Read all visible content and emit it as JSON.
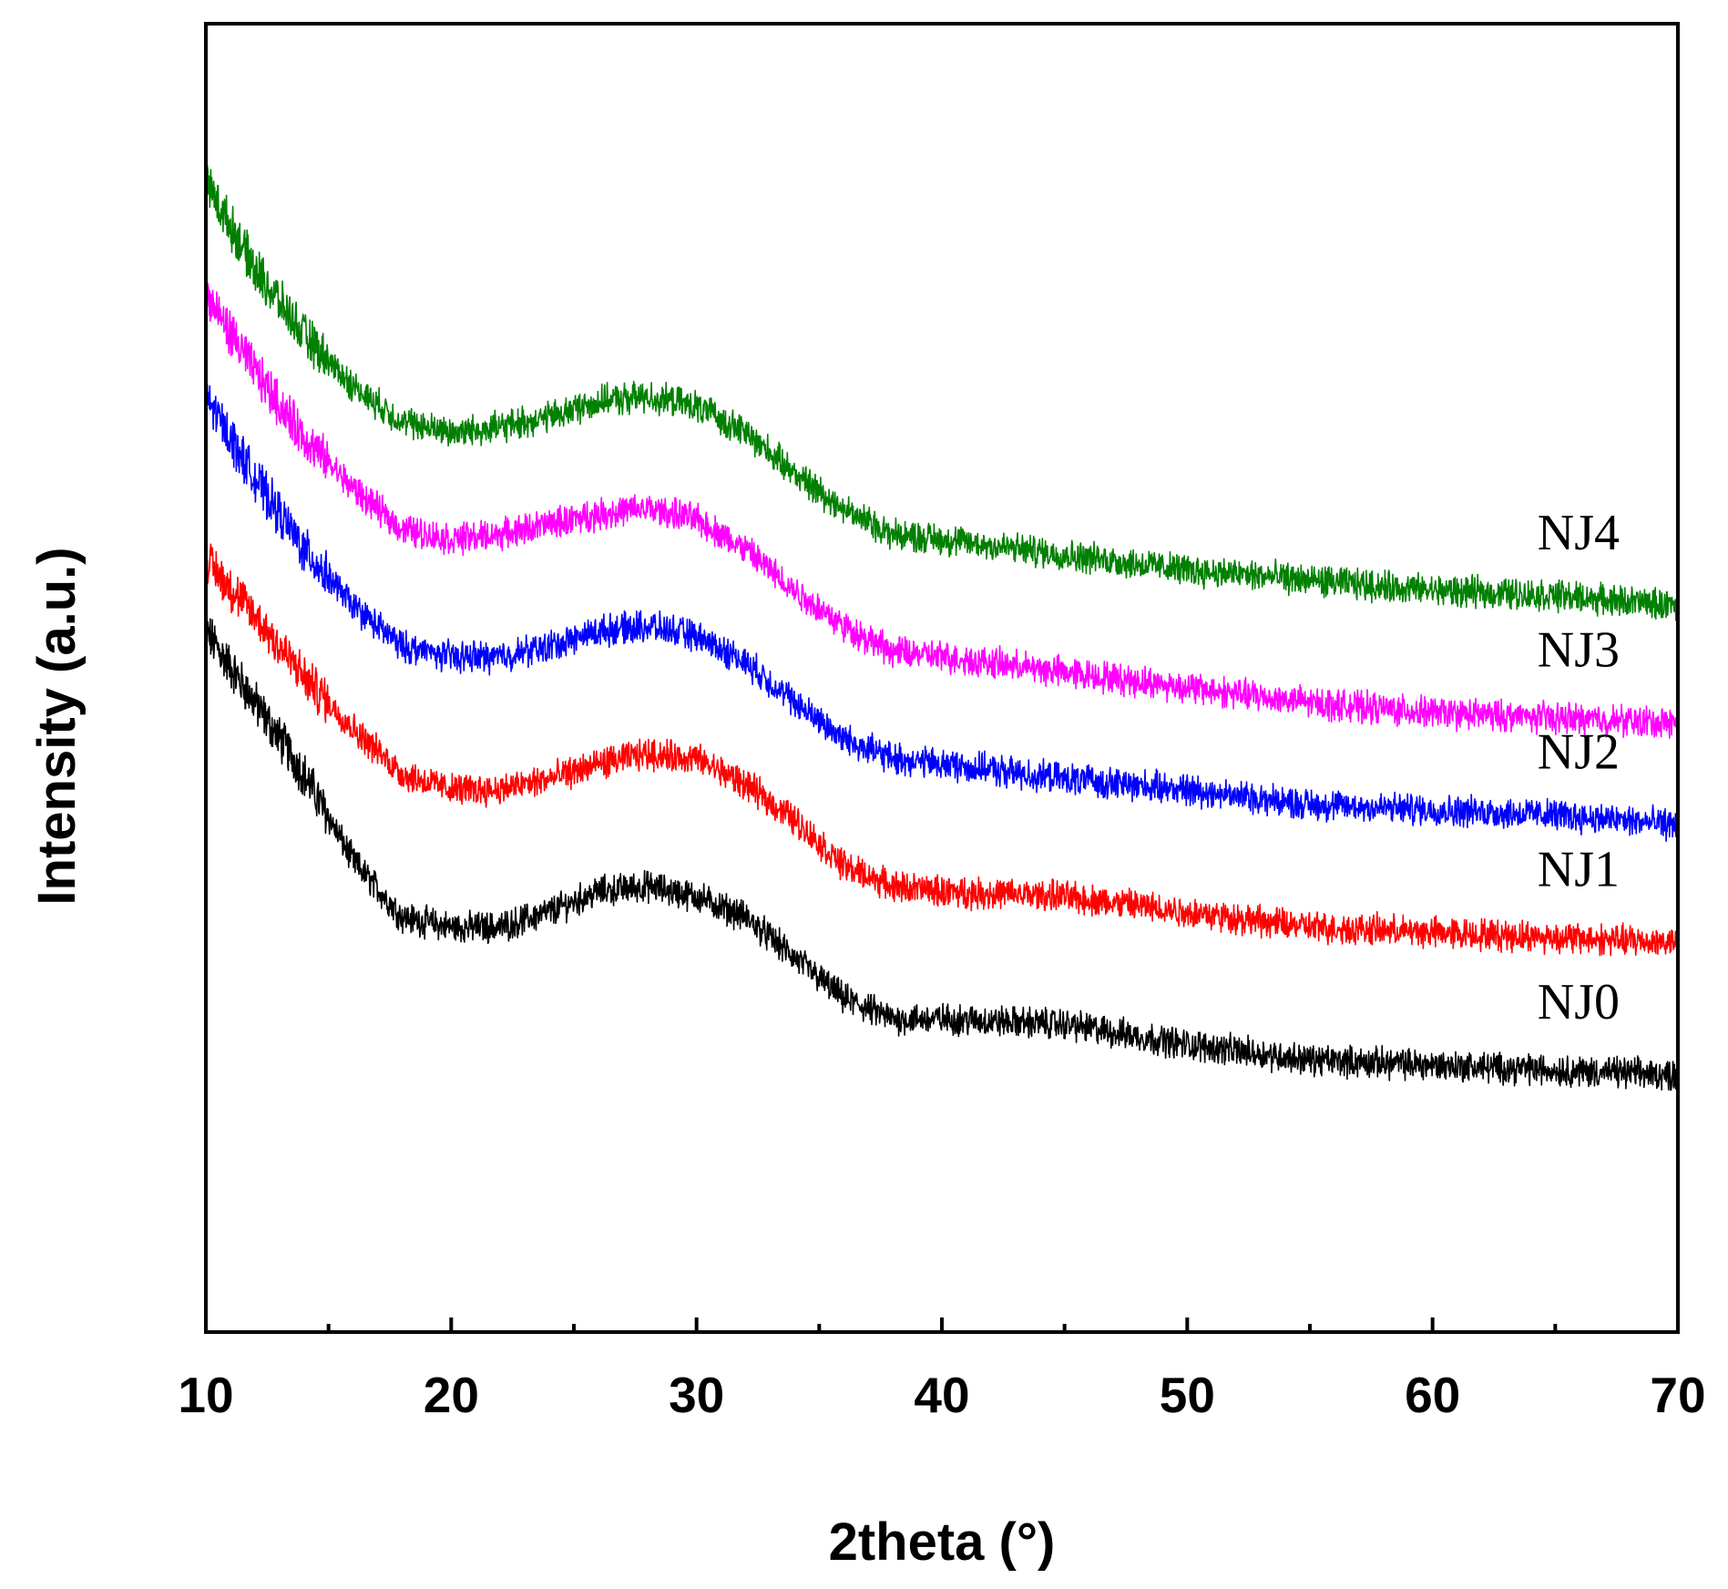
{
  "chart_data": {
    "type": "line",
    "title": "",
    "xlabel": "2theta (°)",
    "ylabel": "Intensity (a.u.)",
    "xlim": [
      10,
      70
    ],
    "ylim": [
      0,
      1
    ],
    "x_ticks": [
      10,
      20,
      30,
      40,
      50,
      60,
      70
    ],
    "x_minor_ticks": [
      15,
      25,
      35,
      45,
      55,
      65
    ],
    "y_ticks_shown": false,
    "grid": false,
    "legend": "inline labels at right end of each curve",
    "series": [
      {
        "name": "NJ0",
        "label": "NJ0",
        "color": "#000000",
        "noise": 0.012,
        "profile": [
          [
            10,
            0.56
          ],
          [
            12,
            0.49
          ],
          [
            14,
            0.42
          ],
          [
            16,
            0.335
          ],
          [
            18,
            0.28
          ],
          [
            20,
            0.27
          ],
          [
            22,
            0.27
          ],
          [
            24,
            0.285
          ],
          [
            26,
            0.305
          ],
          [
            28,
            0.31
          ],
          [
            30,
            0.3
          ],
          [
            32,
            0.28
          ],
          [
            34,
            0.24
          ],
          [
            36,
            0.2
          ],
          [
            38,
            0.18
          ],
          [
            40,
            0.18
          ],
          [
            45,
            0.175
          ],
          [
            50,
            0.155
          ],
          [
            55,
            0.14
          ],
          [
            60,
            0.135
          ],
          [
            65,
            0.13
          ],
          [
            70,
            0.125
          ]
        ]
      },
      {
        "name": "NJ1",
        "label": "NJ1",
        "color": "#ff0000",
        "noise": 0.012,
        "profile": [
          [
            10,
            0.63
          ],
          [
            12,
            0.575
          ],
          [
            14,
            0.515
          ],
          [
            16,
            0.465
          ],
          [
            18,
            0.42
          ],
          [
            20,
            0.405
          ],
          [
            22,
            0.405
          ],
          [
            24,
            0.415
          ],
          [
            26,
            0.43
          ],
          [
            28,
            0.44
          ],
          [
            30,
            0.435
          ],
          [
            32,
            0.41
          ],
          [
            34,
            0.375
          ],
          [
            36,
            0.33
          ],
          [
            38,
            0.31
          ],
          [
            40,
            0.305
          ],
          [
            45,
            0.3
          ],
          [
            50,
            0.285
          ],
          [
            55,
            0.27
          ],
          [
            60,
            0.265
          ],
          [
            65,
            0.26
          ],
          [
            70,
            0.255
          ]
        ]
      },
      {
        "name": "NJ2",
        "label": "NJ2",
        "color": "#0000ff",
        "noise": 0.012,
        "profile": [
          [
            10,
            0.79
          ],
          [
            12,
            0.71
          ],
          [
            14,
            0.64
          ],
          [
            16,
            0.585
          ],
          [
            18,
            0.545
          ],
          [
            20,
            0.535
          ],
          [
            22,
            0.535
          ],
          [
            24,
            0.545
          ],
          [
            26,
            0.56
          ],
          [
            28,
            0.565
          ],
          [
            30,
            0.555
          ],
          [
            32,
            0.53
          ],
          [
            34,
            0.49
          ],
          [
            36,
            0.455
          ],
          [
            38,
            0.435
          ],
          [
            40,
            0.43
          ],
          [
            45,
            0.415
          ],
          [
            50,
            0.405
          ],
          [
            55,
            0.39
          ],
          [
            60,
            0.385
          ],
          [
            65,
            0.38
          ],
          [
            70,
            0.37
          ]
        ]
      },
      {
        "name": "NJ3",
        "label": "NJ3",
        "color": "#ff00ff",
        "noise": 0.012,
        "profile": [
          [
            10,
            0.89
          ],
          [
            12,
            0.815
          ],
          [
            14,
            0.75
          ],
          [
            16,
            0.7
          ],
          [
            18,
            0.66
          ],
          [
            20,
            0.65
          ],
          [
            22,
            0.655
          ],
          [
            24,
            0.665
          ],
          [
            26,
            0.675
          ],
          [
            28,
            0.68
          ],
          [
            30,
            0.67
          ],
          [
            32,
            0.64
          ],
          [
            34,
            0.6
          ],
          [
            36,
            0.565
          ],
          [
            38,
            0.54
          ],
          [
            40,
            0.535
          ],
          [
            45,
            0.52
          ],
          [
            50,
            0.505
          ],
          [
            55,
            0.49
          ],
          [
            60,
            0.48
          ],
          [
            65,
            0.475
          ],
          [
            70,
            0.47
          ]
        ]
      },
      {
        "name": "NJ4",
        "label": "NJ4",
        "color": "#008000",
        "noise": 0.012,
        "profile": [
          [
            10,
            1.0
          ],
          [
            12,
            0.915
          ],
          [
            14,
            0.85
          ],
          [
            16,
            0.8
          ],
          [
            18,
            0.765
          ],
          [
            20,
            0.755
          ],
          [
            22,
            0.76
          ],
          [
            24,
            0.77
          ],
          [
            26,
            0.785
          ],
          [
            28,
            0.79
          ],
          [
            30,
            0.78
          ],
          [
            32,
            0.755
          ],
          [
            34,
            0.715
          ],
          [
            36,
            0.68
          ],
          [
            38,
            0.655
          ],
          [
            40,
            0.65
          ],
          [
            45,
            0.635
          ],
          [
            50,
            0.62
          ],
          [
            55,
            0.61
          ],
          [
            60,
            0.6
          ],
          [
            65,
            0.595
          ],
          [
            70,
            0.585
          ]
        ]
      }
    ]
  }
}
